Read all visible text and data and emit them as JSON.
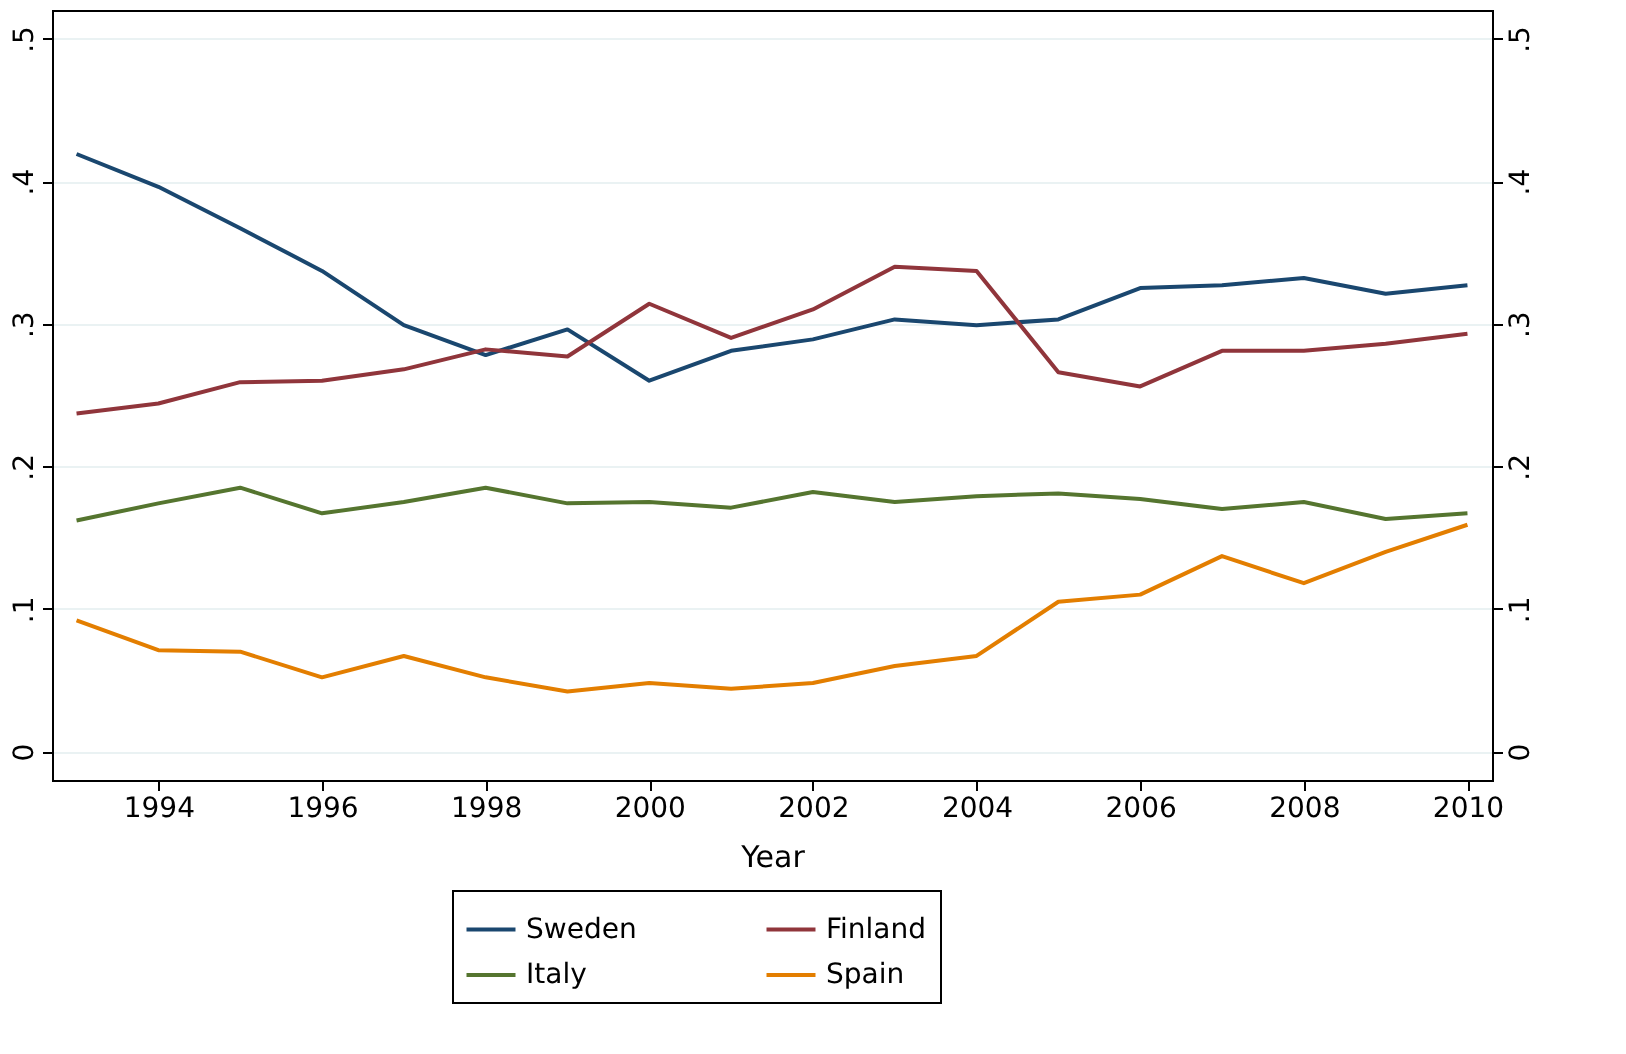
{
  "chart_data": {
    "type": "line",
    "xlabel": "Year",
    "x": [
      1993,
      1994,
      1995,
      1996,
      1997,
      1998,
      1999,
      2000,
      2001,
      2002,
      2003,
      2004,
      2005,
      2006,
      2007,
      2008,
      2009,
      2010
    ],
    "series": [
      {
        "name": "Sweden",
        "color": "#1a476f",
        "values": [
          0.419,
          0.396,
          0.367,
          0.337,
          0.299,
          0.278,
          0.296,
          0.26,
          0.281,
          0.289,
          0.303,
          0.299,
          0.303,
          0.325,
          0.327,
          0.332,
          0.321,
          0.327
        ]
      },
      {
        "name": "Finland",
        "color": "#90353b",
        "values": [
          0.237,
          0.244,
          0.259,
          0.26,
          0.268,
          0.282,
          0.277,
          0.314,
          0.29,
          0.31,
          0.34,
          0.337,
          0.266,
          0.256,
          0.281,
          0.281,
          0.286,
          0.293
        ]
      },
      {
        "name": "Italy",
        "color": "#55752f",
        "values": [
          0.162,
          0.174,
          0.185,
          0.167,
          0.175,
          0.185,
          0.174,
          0.175,
          0.171,
          0.182,
          0.175,
          0.179,
          0.181,
          0.177,
          0.17,
          0.175,
          0.163,
          0.167
        ]
      },
      {
        "name": "Spain",
        "color": "#e37e00",
        "values": [
          0.092,
          0.071,
          0.07,
          0.052,
          0.067,
          0.052,
          0.042,
          0.048,
          0.044,
          0.048,
          0.06,
          0.067,
          0.105,
          0.11,
          0.137,
          0.118,
          0.14,
          0.159
        ]
      }
    ],
    "xlim": [
      1992.7,
      2010.3
    ],
    "xticks": [
      1994,
      1996,
      1998,
      2000,
      2002,
      2004,
      2006,
      2008,
      2010
    ],
    "ylim": [
      -0.02,
      0.52
    ],
    "yticks": [
      {
        "value": 0,
        "label": "0"
      },
      {
        "value": 0.1,
        "label": ".1"
      },
      {
        "value": 0.2,
        "label": ".2"
      },
      {
        "value": 0.3,
        "label": ".3"
      },
      {
        "value": 0.4,
        "label": ".4"
      },
      {
        "value": 0.5,
        "label": ".5"
      }
    ],
    "y2lim": [
      -0.02,
      0.52
    ],
    "y2ticks": [
      {
        "value": 0,
        "label": "0"
      },
      {
        "value": 0.1,
        "label": ".1"
      },
      {
        "value": 0.2,
        "label": ".2"
      },
      {
        "value": 0.3,
        "label": ".3"
      },
      {
        "value": 0.4,
        "label": ".4"
      },
      {
        "value": 0.5,
        "label": ".5"
      }
    ],
    "grid": "y",
    "legend": "bottom",
    "line_style": "solid",
    "marker": "none"
  }
}
